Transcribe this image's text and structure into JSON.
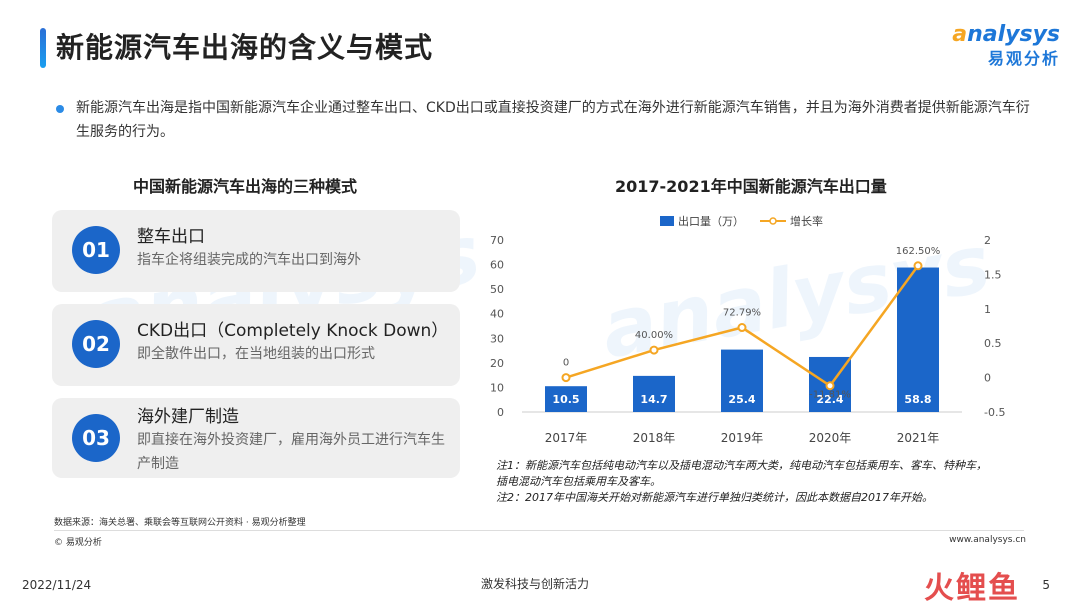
{
  "title": "新能源汽车出海的含义与模式",
  "logo": {
    "brand_prefix": "a",
    "brand_rest": "nalysys",
    "cn": "易观分析"
  },
  "intro": "新能源汽车出海是指中国新能源汽车企业通过整车出口、CKD出口或直接投资建厂的方式在海外进行新能源汽车销售，并且为海外消费者提供新能源汽车衍生服务的行为。",
  "modes_section": {
    "title": "中国新能源汽车出海的三种模式",
    "items": [
      {
        "num": "01",
        "name": "整车出口",
        "desc": "指车企将组装完成的汽车出口到海外"
      },
      {
        "num": "02",
        "name": "CKD出口（Completely Knock Down）",
        "desc": "即全散件出口，在当地组装的出口形式"
      },
      {
        "num": "03",
        "name": "海外建厂制造",
        "desc": "即直接在海外投资建厂，雇用海外员工进行汽车生产制造"
      }
    ]
  },
  "chart_data": {
    "type": "bar",
    "title": "2017-2021年中国新能源汽车出口量",
    "categories": [
      "2017年",
      "2018年",
      "2019年",
      "2020年",
      "2021年"
    ],
    "series": [
      {
        "name": "出口量（万）",
        "type": "bar",
        "axis": "left",
        "values": [
          10.5,
          14.7,
          25.4,
          22.4,
          58.8
        ],
        "color": "#1b66c9"
      },
      {
        "name": "增长率",
        "type": "line",
        "axis": "right",
        "values": [
          0,
          0.4,
          0.7279,
          -0.1181,
          1.625
        ],
        "labels": [
          "0",
          "40.00%",
          "72.79%",
          "-11.81%",
          "162.50%"
        ],
        "color": "#f5a623"
      }
    ],
    "y_left": {
      "min": 0,
      "max": 70,
      "ticks": [
        "0",
        "10",
        "20",
        "30",
        "40",
        "50",
        "60",
        "70"
      ]
    },
    "y_right": {
      "min": -0.5,
      "max": 2,
      "ticks": [
        "-0.5",
        "0",
        "0.5",
        "1",
        "1.5",
        "2"
      ]
    },
    "legend": "top-center",
    "grid": false
  },
  "notes": [
    "注1：新能源汽车包括纯电动汽车以及插电混动汽车两大类，纯电动汽车包括乘用车、客车、特种车，插电混动汽车包括乘用车及客车。",
    "注2：2017年中国海关开始对新能源汽车进行单独归类统计，因此本数据自2017年开始。"
  ],
  "source": "数据来源：海关总署、乘联会等互联网公开资料 · 易观分析整理",
  "copyright": "© 易观分析",
  "website": "www.analysys.cn",
  "date": "2022/11/24",
  "slogan": "激发科技与创新活力",
  "page_number": "5",
  "watermark_text": "analysys 易观分析",
  "corner_mark": "火鲤鱼"
}
